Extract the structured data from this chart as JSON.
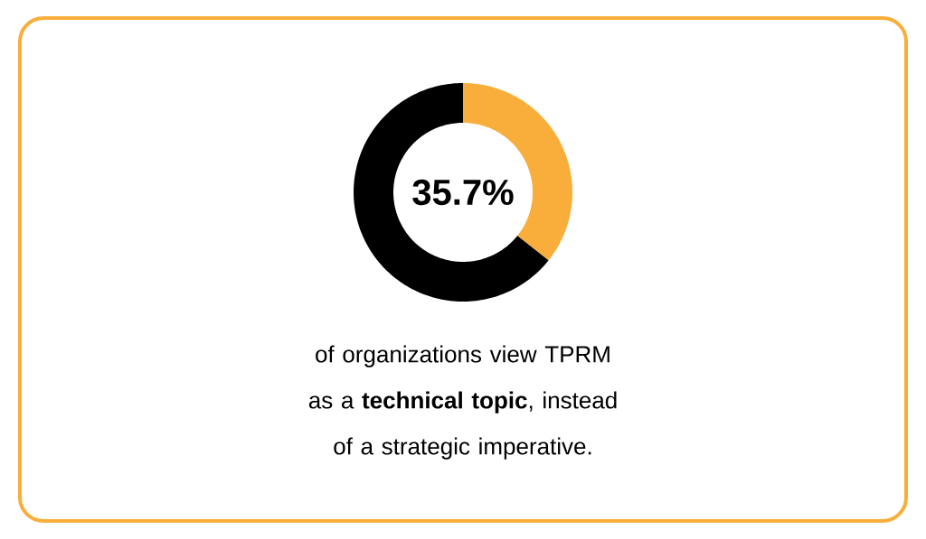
{
  "chart_data": {
    "type": "donut",
    "categories": [
      null,
      null
    ],
    "values": [
      35.7,
      64.3
    ],
    "colors": [
      "#f9ae3b",
      "#000000"
    ],
    "annotations": [
      "35.7%",
      "of organizations view TPRM as a **technical topic**, instead of a strategic imperative."
    ]
  }
}
